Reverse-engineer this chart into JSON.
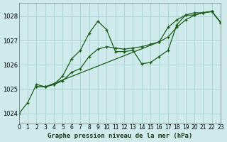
{
  "title": "Graphe pression niveau de la mer (hPa)",
  "bg_color": "#ceeaea",
  "grid_color": "#aad4d4",
  "line_color": "#1a5c1a",
  "xlim": [
    0,
    23
  ],
  "ylim": [
    1023.6,
    1028.55
  ],
  "yticks": [
    1024,
    1025,
    1026,
    1027,
    1028
  ],
  "xticks": [
    0,
    1,
    2,
    3,
    4,
    5,
    6,
    7,
    8,
    9,
    10,
    11,
    12,
    13,
    14,
    15,
    16,
    17,
    18,
    19,
    20,
    21,
    22,
    23
  ],
  "series1_x": [
    0,
    1,
    2,
    3,
    4,
    5,
    6,
    7,
    8,
    9,
    10,
    11,
    12,
    13,
    14,
    15,
    16,
    17,
    18,
    19,
    20,
    21,
    22,
    23
  ],
  "series1_y": [
    1024.0,
    1024.45,
    1025.2,
    1025.1,
    1025.2,
    1025.55,
    1026.25,
    1026.6,
    1027.3,
    1027.8,
    1027.45,
    1026.55,
    1026.55,
    1026.6,
    1026.05,
    1026.1,
    1026.35,
    1026.6,
    1027.65,
    1028.05,
    1028.15,
    1028.15,
    1028.2,
    1027.75
  ],
  "series2_x": [
    2,
    3,
    4,
    5,
    6,
    7,
    8,
    9,
    10,
    11,
    12,
    13,
    14,
    15,
    16,
    17,
    18,
    19,
    20,
    21,
    22,
    23
  ],
  "series2_y": [
    1025.1,
    1025.1,
    1025.2,
    1025.35,
    1025.7,
    1025.85,
    1026.35,
    1026.65,
    1026.75,
    1026.7,
    1026.65,
    1026.7,
    1026.75,
    1026.85,
    1026.95,
    1027.15,
    1027.55,
    1027.85,
    1028.05,
    1028.15,
    1028.2,
    1027.75
  ],
  "series3_x": [
    2,
    3,
    16,
    17,
    18,
    19,
    20,
    21,
    22,
    23
  ],
  "series3_y": [
    1025.1,
    1025.1,
    1026.95,
    1027.55,
    1027.85,
    1028.05,
    1028.05,
    1028.15,
    1028.2,
    1027.75
  ],
  "title_fontsize": 6.5,
  "ylabel_fontsize": 6,
  "xlabel_fontsize": 5.5
}
